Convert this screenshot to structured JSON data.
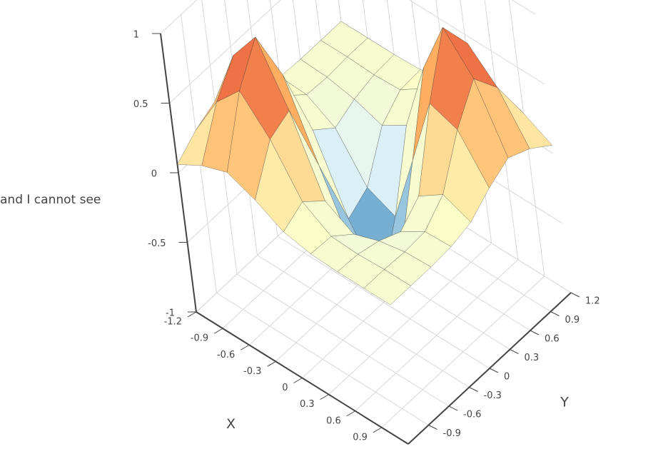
{
  "side_text": "and I cannot see",
  "chart_data": {
    "type": "surface",
    "x": [
      -1.2,
      -0.9,
      -0.6,
      -0.3,
      0,
      0.3,
      0.6,
      0.9,
      1.2
    ],
    "y": [
      -1.2,
      -0.9,
      -0.6,
      -0.3,
      0,
      0.3,
      0.6,
      0.9,
      1.2
    ],
    "z": [
      [
        0.06,
        0.17,
        0.24,
        0.16,
        0.05,
        0.01,
        0,
        0,
        0
      ],
      [
        0.17,
        0.49,
        0.69,
        0.46,
        0.13,
        0,
        -0.01,
        0,
        0
      ],
      [
        0.24,
        0.69,
        0.94,
        0.53,
        0,
        -0.12,
        -0.05,
        -0.01,
        0
      ],
      [
        0.16,
        0.46,
        0.53,
        0,
        -0.52,
        -0.43,
        -0.12,
        0,
        0.01
      ],
      [
        0.05,
        0.13,
        0,
        -0.52,
        -0.89,
        -0.52,
        0,
        0.13,
        0.05
      ],
      [
        0.01,
        0,
        -0.12,
        -0.43,
        -0.52,
        0,
        0.53,
        0.46,
        0.16
      ],
      [
        0,
        -0.01,
        -0.05,
        -0.12,
        0,
        0.53,
        0.94,
        0.69,
        0.24
      ],
      [
        0,
        0,
        -0.01,
        0,
        0.13,
        0.46,
        0.69,
        0.49,
        0.17
      ],
      [
        0,
        0,
        0,
        0.01,
        0.05,
        0.16,
        0.24,
        0.17,
        0.06
      ]
    ],
    "xlim": [
      -1.2,
      1.2
    ],
    "ylim": [
      -1.2,
      1.2
    ],
    "zlim": [
      -1,
      1
    ],
    "xticks": [
      -1.2,
      -0.9,
      -0.6,
      -0.3,
      0,
      0.3,
      0.6,
      0.9
    ],
    "yticks": [
      -0.9,
      -0.6,
      -0.3,
      0,
      0.3,
      0.6,
      0.9,
      1.2
    ],
    "zticks": [
      -1,
      -0.5,
      0,
      0.5,
      1
    ],
    "xlabel": "X",
    "ylabel": "Y",
    "grid": true,
    "colorscale": [
      [
        -1,
        "#313695"
      ],
      [
        -0.6,
        "#74add1"
      ],
      [
        -0.25,
        "#e0f3f8"
      ],
      [
        0.1,
        "#ffffbf"
      ],
      [
        0.5,
        "#fdae61"
      ],
      [
        1,
        "#d7191c"
      ]
    ]
  }
}
